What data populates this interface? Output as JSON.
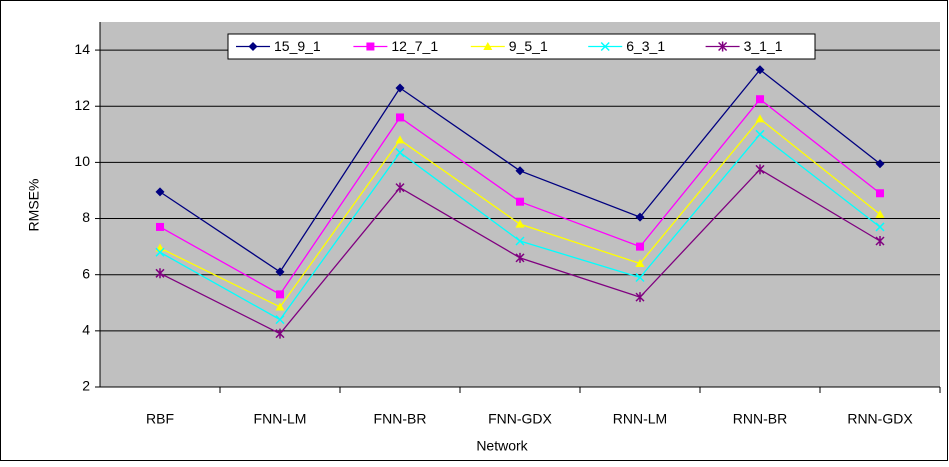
{
  "chart_data": {
    "type": "line",
    "y_label": "RMSE%",
    "x_label": "Network",
    "categories": [
      "RBF",
      "FNN-LM",
      "FNN-BR",
      "FNN-GDX",
      "RNN-LM",
      "RNN-BR",
      "RNN-GDX"
    ],
    "series": [
      {
        "name": "15_9_1",
        "color": "#000080",
        "marker": "diamond",
        "values": [
          8.95,
          6.1,
          12.65,
          9.7,
          8.05,
          13.3,
          9.95
        ]
      },
      {
        "name": "12_7_1",
        "color": "#ff00ff",
        "marker": "square",
        "values": [
          7.7,
          5.3,
          11.6,
          8.6,
          7.0,
          12.25,
          8.9
        ]
      },
      {
        "name": "9_5_1",
        "color": "#ffff00",
        "marker": "triangle",
        "values": [
          6.95,
          4.85,
          10.8,
          7.8,
          6.4,
          11.55,
          8.15
        ]
      },
      {
        "name": "6_3_1",
        "color": "#00ffff",
        "marker": "x",
        "values": [
          6.8,
          4.4,
          10.35,
          7.2,
          5.9,
          11.0,
          7.7
        ]
      },
      {
        "name": "3_1_1",
        "color": "#800080",
        "marker": "star",
        "values": [
          6.05,
          3.9,
          9.1,
          6.6,
          5.2,
          9.75,
          7.2
        ]
      }
    ],
    "ylim": [
      2,
      15
    ],
    "yticks": [
      2,
      4,
      6,
      8,
      10,
      12,
      14
    ],
    "grid": true,
    "legend": "top"
  }
}
